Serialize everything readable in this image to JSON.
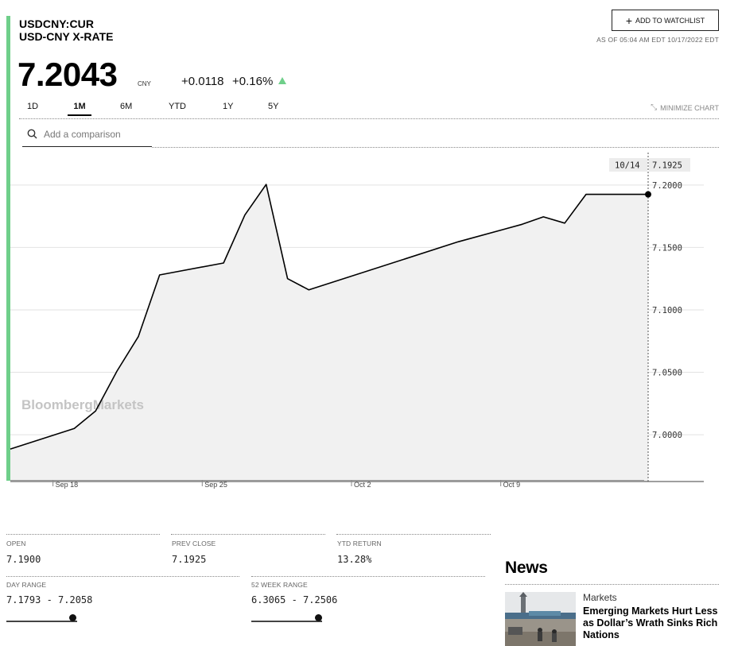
{
  "header": {
    "ticker": "USDCNY:CUR",
    "name": "USD-CNY X-RATE",
    "watchlist_label": "ADD TO WATCHLIST",
    "as_of": "AS OF 05:04 AM EDT 10/17/2022 EDT"
  },
  "quote": {
    "price": "7.2043",
    "currency": "CNY",
    "change": "+0.0118",
    "change_pct": "+0.16%",
    "direction_color": "#6fcf8a"
  },
  "range_tabs": [
    "1D",
    "1M",
    "6M",
    "YTD",
    "1Y",
    "5Y"
  ],
  "active_tab": "1M",
  "minimize_label": "MINIMIZE CHART",
  "compare": {
    "placeholder": "Add a comparison"
  },
  "watermark": "BloombergMarkets",
  "chart_data": {
    "type": "area",
    "tooltip": {
      "date": "10/14",
      "value": "7.1925"
    },
    "x": [
      "Sep 16",
      "Sep 19",
      "Sep 20",
      "Sep 21",
      "Sep 22",
      "Sep 23",
      "Sep 26",
      "Sep 27",
      "Sep 28",
      "Sep 29",
      "Sep 30",
      "Oct 7",
      "Oct 10",
      "Oct 11",
      "Oct 12",
      "Oct 13",
      "Oct 14"
    ],
    "values": [
      6.9885,
      7.005,
      7.019,
      7.051,
      7.0785,
      7.128,
      7.1375,
      7.176,
      7.2005,
      7.125,
      7.116,
      7.1545,
      7.1685,
      7.1745,
      7.1695,
      7.1925,
      7.1925
    ],
    "y_ticks": [
      "7.2000",
      "7.1500",
      "7.1000",
      "7.0500",
      "7.0000"
    ],
    "x_ticks": [
      "Sep 18",
      "Sep 25",
      "Oct 2",
      "Oct 9"
    ],
    "ylim": [
      6.9625,
      7.226
    ],
    "baseline": 6.9625,
    "grid": true
  },
  "stats": {
    "open": {
      "label": "OPEN",
      "value": "7.1900"
    },
    "prev_close": {
      "label": "PREV CLOSE",
      "value": "7.1925"
    },
    "ytd_return": {
      "label": "YTD RETURN",
      "value": "13.28%"
    },
    "day_range": {
      "label": "DAY RANGE",
      "value": "7.1793 - 7.2058",
      "position": 0.94
    },
    "week52_range": {
      "label": "52 WEEK RANGE",
      "value": "6.3065 - 7.2506",
      "position": 0.95
    }
  },
  "news": {
    "title": "News",
    "items": [
      {
        "category": "Markets",
        "headline": "Emerging Markets Hurt Less as Dollar’s Wrath Sinks Rich Nations"
      }
    ]
  }
}
